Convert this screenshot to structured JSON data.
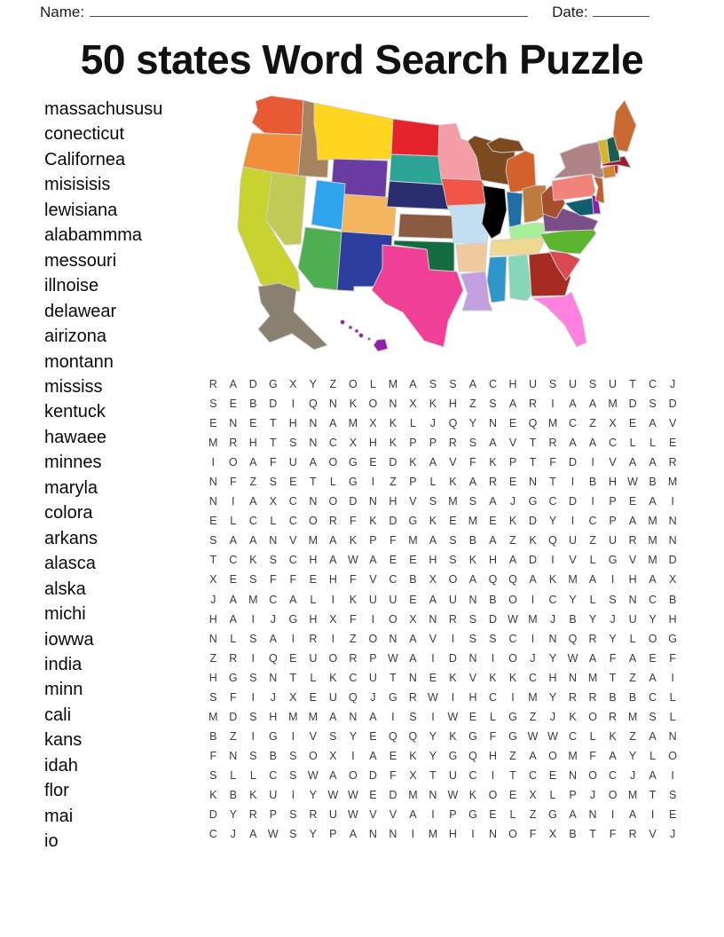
{
  "header": {
    "name_label": "Name:",
    "date_label": "Date:"
  },
  "title": "50 states Word Search Puzzle",
  "word_list": [
    "massachususu",
    "conecticut",
    "Californea",
    "misisisis",
    "lewisiana",
    "alabammma",
    "messouri",
    "illnoise",
    "delawear",
    "airizona",
    "montann",
    "mississ",
    "kentuck",
    "hawaee",
    "minnes",
    "maryla",
    "colora",
    "arkans",
    "alasca",
    "alska",
    "michi",
    "iowwa",
    "india",
    "minn",
    "cali",
    "kans",
    "idah",
    "flor",
    "mai",
    "io"
  ],
  "grid": {
    "rows": [
      "RADGXYZOLMASSACHUSUSUTCJ",
      "SEBDIQNKONXKHZSARIAAMDSD",
      "ENETHNAMXKLJQYNEQMCZXEAV",
      "MRHTSNCXHKPPRSAVTRAACLLE",
      "IOAFUAOGEDKAVFKPTFDIVAAR",
      "NFZSETLGIZPLKARENTIBHWBM",
      "NIAXCNODNHVSMSAJGCDIPEAI",
      "ELCLCORFKDGKEMEKDYICPAMN",
      "SAANVMAKPFMASBAZKQUZURMN",
      "TCKSCHAWAEEHSKHADIVLGVMD",
      "XESFFEHFVCBXOAQQAKMAIHAX",
      "JAMCALIKUUEAUNBOICYLSNCB",
      "HAIJGHXFIOXNRSDWMJBYJUYH",
      "NLSAIRIZONAVISSCINQRYLOG",
      "ZRIQEUORPWAIDNIOJYWAFAEF",
      "HGSNTLKCUTNEKVKKCHNMTZAI",
      "SFIJXEUQJGRWIHCIMYRRBBCL",
      "MDSHMMANAISIWELGZJKORMSL",
      "BZIGIVSYEQQYKGFGWWCLKZAN",
      "FNSBSOXIAEKYGQHZAOMFAYLO",
      "SLLCSWAODFXTUCITCENOCJAI",
      "KBKUIYWWEDMNWKOEXLPJOMTS",
      "DYRPSRUWVVAIPGELZGANIAIE",
      "CJAWSYPANNIMHINOFXBTFRVJ"
    ]
  },
  "map": {
    "border_color": "#cfcfcf",
    "states": {
      "WA": "#E85A33",
      "OR": "#EF8E3B",
      "CA": "#C8D32F",
      "NV": "#C0CA55",
      "ID": "#A6835D",
      "MT": "#FFD520",
      "WY": "#6B3CA2",
      "UT": "#2FA3EC",
      "CO": "#F4B55F",
      "AZ": "#4DAF50",
      "NM": "#2C3E9E",
      "ND": "#E5232B",
      "SD": "#2CA495",
      "NE": "#2A2E6F",
      "KS": "#8A5A41",
      "OK": "#156B40",
      "TX": "#EF3F97",
      "MN": "#F49DA7",
      "IA": "#F05548",
      "MO": "#C2DFF2",
      "AR": "#F0CA9F",
      "LA": "#C2A0E0",
      "WI": "#7B4A1E",
      "MI": "#D2612B",
      "MI_UP": "#7B4A1E",
      "IN": "#1F6FA6",
      "OH": "#BE7B3D",
      "KY": "#A5F19A",
      "TN": "#EDD98F",
      "MS": "#2E96C8",
      "AL": "#86D7B8",
      "GA": "#A62B21",
      "FL": "#FF80DF",
      "SC": "#D94A52",
      "NC": "#5BB52F",
      "VA": "#7A4E87",
      "WV": "#A64E2E",
      "MD": "#0F5E70",
      "DE": "#8C1FB0",
      "PA": "#F2837B",
      "NY": "#B08486",
      "NJ": "#C05F2E",
      "CT": "#D28534",
      "RI": "#CC2B2B",
      "MA": "#9E1B33",
      "VT": "#D6B42B",
      "NH": "#1D5C4C",
      "ME": "#C96A33",
      "AK": "#8A8072",
      "HI": "#921FA8"
    }
  }
}
